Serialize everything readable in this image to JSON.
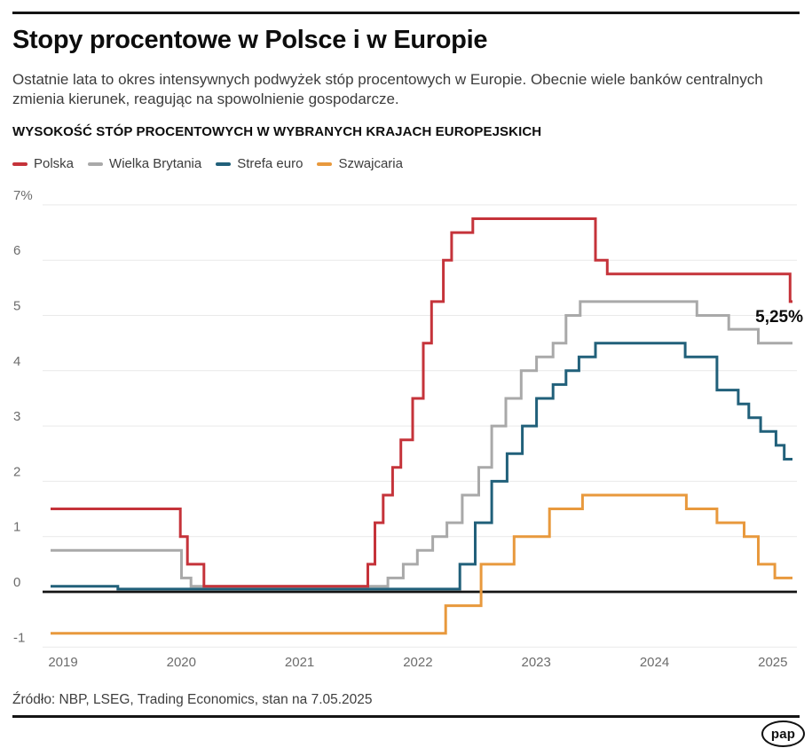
{
  "header": {
    "title": "Stopy procentowe w Polsce i w Europie",
    "subtitle": "Ostatnie lata to okres intensywnych podwyżek stóp procentowych w Europie. Obecnie wiele banków centralnych zmienia kierunek, reagując na spowolnienie gospodarcze.",
    "chart_heading": "WYSOKOŚĆ STÓP PROCENTOWYCH W WYBRANYCH KRAJACH EUROPEJSKICH"
  },
  "chart_data": {
    "type": "line",
    "step": true,
    "unit": "%",
    "grid": true,
    "legend_position": "top",
    "x_domain": [
      2019.1,
      2025.39
    ],
    "ylim": [
      -1,
      7
    ],
    "y_ticks": [
      {
        "label": "7%",
        "v": 7
      },
      {
        "label": "6",
        "v": 6
      },
      {
        "label": "5",
        "v": 5
      },
      {
        "label": "4",
        "v": 4
      },
      {
        "label": "3",
        "v": 3
      },
      {
        "label": "2",
        "v": 2
      },
      {
        "label": "1",
        "v": 1
      },
      {
        "label": "0",
        "v": 0
      },
      {
        "label": "-1",
        "v": -1
      }
    ],
    "x_ticks": [
      "2019",
      "2020",
      "2021",
      "2022",
      "2023",
      "2024",
      "2025"
    ],
    "series": [
      {
        "name": "Polska",
        "color": "#c5333a",
        "z": 1,
        "points": [
          [
            2019.1,
            1.5
          ],
          [
            2020.2,
            1.0
          ],
          [
            2020.26,
            0.5
          ],
          [
            2020.4,
            0.1
          ],
          [
            2021.79,
            0.5
          ],
          [
            2021.85,
            1.25
          ],
          [
            2021.92,
            1.75
          ],
          [
            2022.0,
            2.25
          ],
          [
            2022.07,
            2.75
          ],
          [
            2022.17,
            3.5
          ],
          [
            2022.26,
            4.5
          ],
          [
            2022.33,
            5.25
          ],
          [
            2022.43,
            6.0
          ],
          [
            2022.5,
            6.5
          ],
          [
            2022.68,
            6.75
          ],
          [
            2023.72,
            6.0
          ],
          [
            2023.82,
            5.75
          ],
          [
            2025.37,
            5.25
          ]
        ]
      },
      {
        "name": "Wielka Brytania",
        "color": "#a9a9a9",
        "z": 0,
        "points": [
          [
            2019.1,
            0.75
          ],
          [
            2020.21,
            0.25
          ],
          [
            2020.29,
            0.1
          ],
          [
            2021.96,
            0.25
          ],
          [
            2022.09,
            0.5
          ],
          [
            2022.21,
            0.75
          ],
          [
            2022.34,
            1.0
          ],
          [
            2022.46,
            1.25
          ],
          [
            2022.59,
            1.75
          ],
          [
            2022.73,
            2.25
          ],
          [
            2022.84,
            3.0
          ],
          [
            2022.96,
            3.5
          ],
          [
            2023.09,
            4.0
          ],
          [
            2023.22,
            4.25
          ],
          [
            2023.36,
            4.5
          ],
          [
            2023.47,
            5.0
          ],
          [
            2023.59,
            5.25
          ],
          [
            2024.58,
            5.0
          ],
          [
            2024.85,
            4.75
          ],
          [
            2025.1,
            4.5
          ]
        ]
      },
      {
        "name": "Strefa euro",
        "color": "#21607a",
        "z": 0,
        "points": [
          [
            2019.1,
            0.1
          ],
          [
            2019.67,
            0.05
          ],
          [
            2022.57,
            0.5
          ],
          [
            2022.7,
            1.25
          ],
          [
            2022.84,
            2.0
          ],
          [
            2022.97,
            2.5
          ],
          [
            2023.1,
            3.0
          ],
          [
            2023.22,
            3.5
          ],
          [
            2023.36,
            3.75
          ],
          [
            2023.47,
            4.0
          ],
          [
            2023.58,
            4.25
          ],
          [
            2023.72,
            4.5
          ],
          [
            2024.48,
            4.25
          ],
          [
            2024.75,
            3.65
          ],
          [
            2024.93,
            3.4
          ],
          [
            2025.02,
            3.15
          ],
          [
            2025.12,
            2.9
          ],
          [
            2025.25,
            2.65
          ],
          [
            2025.32,
            2.4
          ]
        ]
      },
      {
        "name": "Szwajcaria",
        "color": "#e8993d",
        "z": 0,
        "points": [
          [
            2019.1,
            -0.75
          ],
          [
            2022.45,
            -0.25
          ],
          [
            2022.75,
            0.5
          ],
          [
            2023.03,
            1.0
          ],
          [
            2023.33,
            1.5
          ],
          [
            2023.61,
            1.75
          ],
          [
            2024.49,
            1.5
          ],
          [
            2024.75,
            1.25
          ],
          [
            2024.98,
            1.0
          ],
          [
            2025.1,
            0.5
          ],
          [
            2025.24,
            0.25
          ]
        ]
      }
    ],
    "annotation": {
      "text": "5,25%",
      "series_index": 0
    }
  },
  "footer": {
    "source": "Źródło: NBP, LSEG, Trading Economics, stan na 7.05.2025",
    "logo_text": "pap"
  }
}
